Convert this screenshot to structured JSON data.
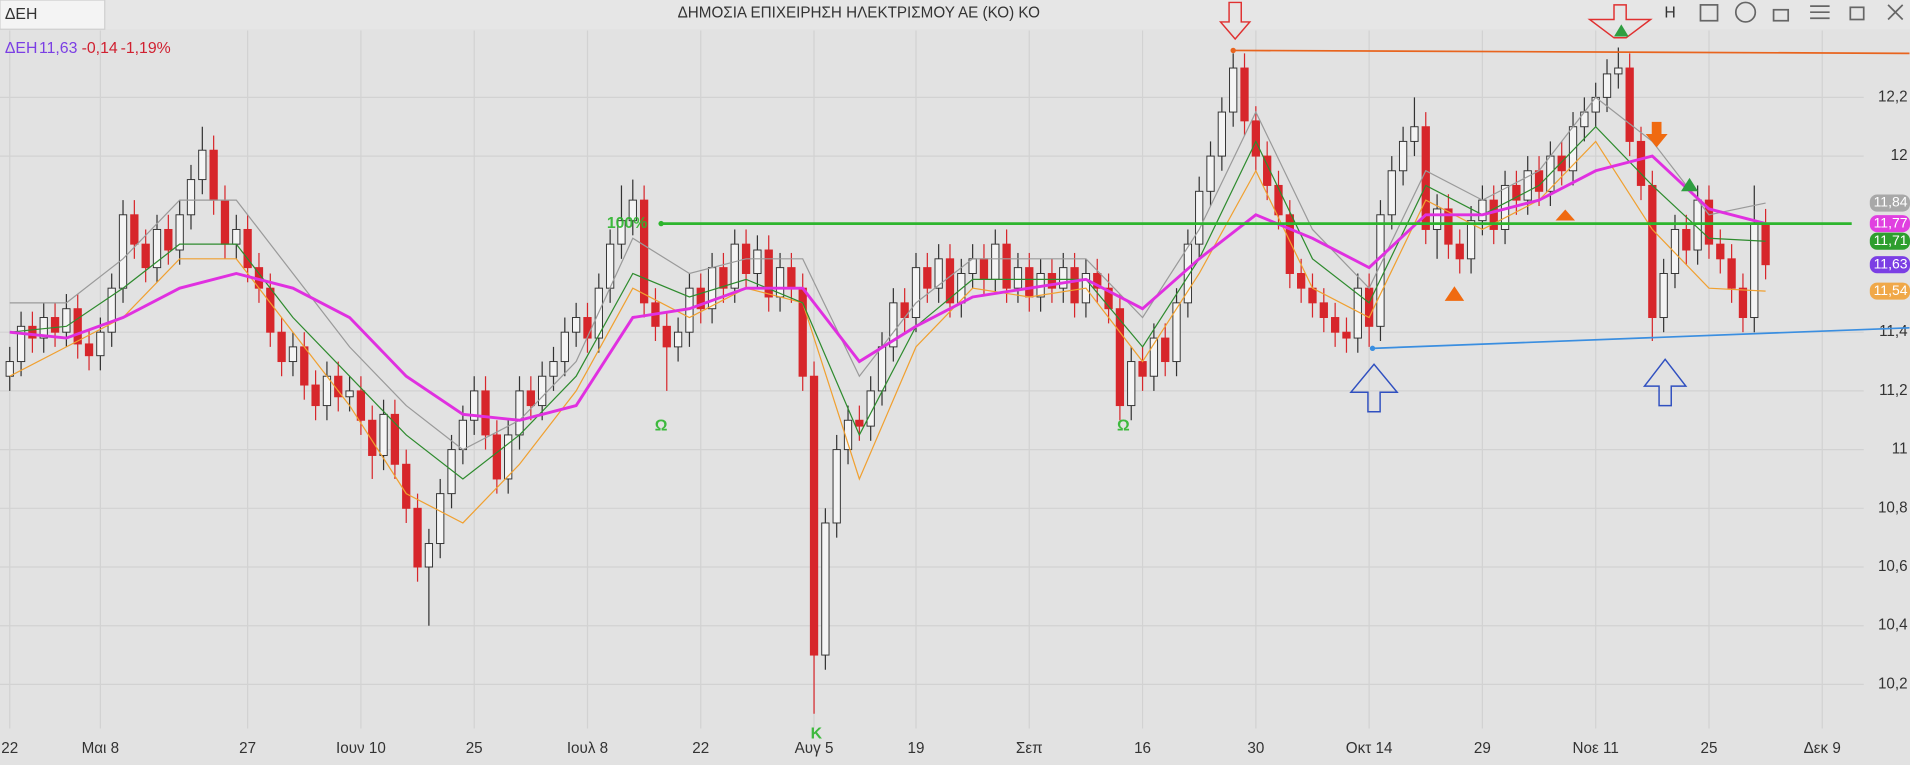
{
  "tab": "ΔΕΗ",
  "title": "ΔΗΜΟΣΙΑ ΕΠΙΧΕΙΡΗΣΗ ΗΛΕΚΤΡΙΣΜΟΥ ΑΕ (ΚΟ) ΚΟ",
  "toolbar": {
    "h_button": "H"
  },
  "chart_data": {
    "type": "candlestick",
    "legend": {
      "symbol": "ΔΕΗ",
      "last": "11,63",
      "change": "-0,14",
      "change_pct": "-1,19%"
    },
    "xlim": [
      -0.86,
      163.66
    ],
    "xticks": [
      {
        "value": 0,
        "label": "22"
      },
      {
        "value": 8,
        "label": "Μαι 8"
      },
      {
        "value": 21,
        "label": "27"
      },
      {
        "value": 31,
        "label": "Ιουν 10"
      },
      {
        "value": 41,
        "label": "25"
      },
      {
        "value": 51,
        "label": "Ιουλ 8"
      },
      {
        "value": 61,
        "label": "22"
      },
      {
        "value": 71,
        "label": "Αυγ 5"
      },
      {
        "value": 80,
        "label": "19"
      },
      {
        "value": 90,
        "label": "Σεπ"
      },
      {
        "value": 100,
        "label": "16"
      },
      {
        "value": 110,
        "label": "30"
      },
      {
        "value": 120,
        "label": "Οκτ 14"
      },
      {
        "value": 130,
        "label": "29"
      },
      {
        "value": 140,
        "label": "Νοε 11"
      },
      {
        "value": 150,
        "label": "25"
      },
      {
        "value": 160,
        "label": "Δεκ 9"
      }
    ],
    "ylim": [
      10.05,
      12.428
    ],
    "yticks": [
      {
        "value": 10.2,
        "label": "10,2"
      },
      {
        "value": 10.4,
        "label": "10,4"
      },
      {
        "value": 10.6,
        "label": "10,6"
      },
      {
        "value": 10.8,
        "label": "10,8"
      },
      11,
      {
        "value": 11.2,
        "label": "11,2"
      },
      {
        "value": 11.4,
        "label": "11,4"
      },
      12,
      {
        "value": 12.2,
        "label": "12,2"
      }
    ],
    "grid": true,
    "up_color": "#f4f4f4",
    "down_color": "#d7262b",
    "candles": {
      "open": [
        11.25,
        11.3,
        11.42,
        11.38,
        11.45,
        11.4,
        11.48,
        11.36,
        11.32,
        11.4,
        11.55,
        11.8,
        11.7,
        11.62,
        11.75,
        11.68,
        11.8,
        11.92,
        12.02,
        11.85,
        11.7,
        11.75,
        11.62,
        11.55,
        11.4,
        11.3,
        11.35,
        11.22,
        11.15,
        11.25,
        11.18,
        11.2,
        11.1,
        10.98,
        11.12,
        10.95,
        10.8,
        10.6,
        10.68,
        10.85,
        11.0,
        11.1,
        11.2,
        11.05,
        10.9,
        11.05,
        11.2,
        11.15,
        11.25,
        11.3,
        11.4,
        11.45,
        11.38,
        11.55,
        11.7,
        11.78,
        11.85,
        11.5,
        11.42,
        11.35,
        11.4,
        11.55,
        11.48,
        11.62,
        11.55,
        11.7,
        11.6,
        11.68,
        11.52,
        11.62,
        11.55,
        11.25,
        10.3,
        10.75,
        11.0,
        11.1,
        11.08,
        11.2,
        11.35,
        11.5,
        11.45,
        11.62,
        11.55,
        11.65,
        11.5,
        11.6,
        11.65,
        11.58,
        11.7,
        11.55,
        11.62,
        11.52,
        11.6,
        11.55,
        11.62,
        11.5,
        11.6,
        11.55,
        11.48,
        11.15,
        11.3,
        11.25,
        11.38,
        11.3,
        11.5,
        11.7,
        11.88,
        12.0,
        12.15,
        12.3,
        12.12,
        12.0,
        11.9,
        11.8,
        11.6,
        11.55,
        11.5,
        11.45,
        11.4,
        11.38,
        11.55,
        11.42,
        11.8,
        11.95,
        12.05,
        12.1,
        11.75,
        11.82,
        11.7,
        11.65,
        11.78,
        11.85,
        11.75,
        11.9,
        11.85,
        11.95,
        11.88,
        12.0,
        11.95,
        12.1,
        12.15,
        12.2,
        12.28,
        12.3,
        12.05,
        11.9,
        11.45,
        11.6,
        11.75,
        11.68,
        11.85,
        11.7,
        11.65,
        11.55,
        11.45,
        11.77
      ],
      "high": [
        11.35,
        11.47,
        11.47,
        11.5,
        11.5,
        11.53,
        11.53,
        11.41,
        11.45,
        11.6,
        11.85,
        11.85,
        11.75,
        11.8,
        11.8,
        11.85,
        11.97,
        12.1,
        12.07,
        11.9,
        11.8,
        11.8,
        11.67,
        11.6,
        11.45,
        11.4,
        11.4,
        11.27,
        11.3,
        11.3,
        11.25,
        11.25,
        11.15,
        11.17,
        11.17,
        11.0,
        10.85,
        10.73,
        10.9,
        11.05,
        11.15,
        11.25,
        11.25,
        11.1,
        11.1,
        11.25,
        11.25,
        11.3,
        11.35,
        11.45,
        11.5,
        11.5,
        11.6,
        11.75,
        11.9,
        11.92,
        11.9,
        11.55,
        11.47,
        11.45,
        11.6,
        11.6,
        11.67,
        11.67,
        11.75,
        11.75,
        11.73,
        11.73,
        11.67,
        11.67,
        11.6,
        11.3,
        10.8,
        11.05,
        11.15,
        11.15,
        11.25,
        11.4,
        11.55,
        11.55,
        11.67,
        11.67,
        11.7,
        11.7,
        11.65,
        11.7,
        11.7,
        11.75,
        11.75,
        11.67,
        11.67,
        11.65,
        11.65,
        11.67,
        11.67,
        11.65,
        11.65,
        11.6,
        11.53,
        11.35,
        11.35,
        11.43,
        11.43,
        11.55,
        11.75,
        11.93,
        12.05,
        12.2,
        12.35,
        12.35,
        12.17,
        12.05,
        11.95,
        11.85,
        11.65,
        11.6,
        11.55,
        11.5,
        11.45,
        11.6,
        11.6,
        11.85,
        12.0,
        12.1,
        12.2,
        12.15,
        11.87,
        11.87,
        11.75,
        11.83,
        11.9,
        11.9,
        11.95,
        11.95,
        12.0,
        12.0,
        12.05,
        12.05,
        12.15,
        12.2,
        12.25,
        12.33,
        12.37,
        12.35,
        12.1,
        11.95,
        11.65,
        11.8,
        11.8,
        11.9,
        11.9,
        11.75,
        11.7,
        11.6,
        11.9,
        11.82
      ],
      "low": [
        11.2,
        11.25,
        11.33,
        11.33,
        11.35,
        11.35,
        11.31,
        11.27,
        11.27,
        11.35,
        11.5,
        11.65,
        11.57,
        11.57,
        11.63,
        11.63,
        11.75,
        11.87,
        11.8,
        11.65,
        11.65,
        11.57,
        11.5,
        11.35,
        11.25,
        11.25,
        11.17,
        11.1,
        11.1,
        11.13,
        11.13,
        11.05,
        10.9,
        10.93,
        10.9,
        10.75,
        10.55,
        10.4,
        10.63,
        10.8,
        10.95,
        11.05,
        11.0,
        10.85,
        10.85,
        11.0,
        11.1,
        11.1,
        11.2,
        11.25,
        11.35,
        11.33,
        11.33,
        11.5,
        11.65,
        11.73,
        11.45,
        11.37,
        11.2,
        11.3,
        11.35,
        11.43,
        11.43,
        11.5,
        11.5,
        11.55,
        11.55,
        11.47,
        11.47,
        11.5,
        11.2,
        10.1,
        10.25,
        10.7,
        10.95,
        11.03,
        11.03,
        11.15,
        11.3,
        11.4,
        11.4,
        11.5,
        11.5,
        11.45,
        11.45,
        11.55,
        11.53,
        11.53,
        11.5,
        11.5,
        11.47,
        11.47,
        11.5,
        11.5,
        11.45,
        11.45,
        11.5,
        11.43,
        11.1,
        11.1,
        11.2,
        11.2,
        11.25,
        11.25,
        11.45,
        11.65,
        11.83,
        11.95,
        12.1,
        12.07,
        11.95,
        11.85,
        11.75,
        11.55,
        11.5,
        11.45,
        11.4,
        11.35,
        11.33,
        11.33,
        11.35,
        11.37,
        11.75,
        11.9,
        12.0,
        11.7,
        11.65,
        11.65,
        11.6,
        11.6,
        11.73,
        11.7,
        11.7,
        11.8,
        11.8,
        11.83,
        11.83,
        11.9,
        11.9,
        12.05,
        12.1,
        12.15,
        12.23,
        12.0,
        11.85,
        11.37,
        11.4,
        11.55,
        11.63,
        11.63,
        11.65,
        11.6,
        11.5,
        11.4,
        11.4,
        11.58
      ],
      "close": [
        11.3,
        11.42,
        11.38,
        11.45,
        11.4,
        11.48,
        11.36,
        11.32,
        11.4,
        11.55,
        11.8,
        11.7,
        11.62,
        11.75,
        11.68,
        11.8,
        11.92,
        12.02,
        11.85,
        11.7,
        11.75,
        11.62,
        11.55,
        11.4,
        11.3,
        11.35,
        11.22,
        11.15,
        11.25,
        11.18,
        11.2,
        11.1,
        10.98,
        11.12,
        10.95,
        10.8,
        10.6,
        10.68,
        10.85,
        11.0,
        11.1,
        11.2,
        11.05,
        10.9,
        11.05,
        11.2,
        11.15,
        11.25,
        11.3,
        11.4,
        11.45,
        11.38,
        11.55,
        11.7,
        11.78,
        11.85,
        11.5,
        11.42,
        11.35,
        11.4,
        11.55,
        11.48,
        11.62,
        11.55,
        11.7,
        11.6,
        11.68,
        11.52,
        11.62,
        11.55,
        11.25,
        10.3,
        10.75,
        11.0,
        11.1,
        11.08,
        11.2,
        11.35,
        11.5,
        11.45,
        11.62,
        11.55,
        11.65,
        11.5,
        11.6,
        11.65,
        11.58,
        11.7,
        11.55,
        11.62,
        11.52,
        11.6,
        11.55,
        11.62,
        11.5,
        11.6,
        11.55,
        11.48,
        11.15,
        11.3,
        11.25,
        11.38,
        11.3,
        11.5,
        11.7,
        11.88,
        12.0,
        12.15,
        12.3,
        12.12,
        12.0,
        11.9,
        11.8,
        11.6,
        11.55,
        11.5,
        11.45,
        11.4,
        11.38,
        11.55,
        11.42,
        11.8,
        11.95,
        12.05,
        12.1,
        11.75,
        11.82,
        11.7,
        11.65,
        11.78,
        11.85,
        11.75,
        11.9,
        11.85,
        11.95,
        11.88,
        12.0,
        11.95,
        12.1,
        12.15,
        12.2,
        12.28,
        12.3,
        12.05,
        11.9,
        11.45,
        11.6,
        11.75,
        11.68,
        11.85,
        11.7,
        11.65,
        11.55,
        11.45,
        11.77,
        11.63
      ]
    },
    "series": [
      {
        "color": "#9a9a9a",
        "x": [
          0,
          5,
          10,
          15,
          20,
          25,
          30,
          35,
          40,
          45,
          50,
          55,
          60,
          65,
          70,
          75,
          80,
          85,
          90,
          95,
          100,
          105,
          110,
          115,
          120,
          125,
          130,
          135,
          140,
          145,
          150,
          155
        ],
        "values": [
          11.5,
          11.5,
          11.65,
          11.85,
          11.85,
          11.6,
          11.35,
          11.15,
          11.0,
          11.1,
          11.3,
          11.72,
          11.6,
          11.65,
          11.65,
          11.25,
          11.5,
          11.65,
          11.65,
          11.65,
          11.45,
          11.75,
          12.15,
          11.75,
          11.55,
          11.95,
          11.85,
          11.95,
          12.2,
          12.05,
          11.8,
          11.84
        ]
      },
      {
        "color": "#f0a030",
        "x": [
          0,
          5,
          10,
          15,
          20,
          25,
          30,
          35,
          40,
          45,
          50,
          55,
          60,
          65,
          70,
          75,
          80,
          85,
          90,
          95,
          100,
          105,
          110,
          115,
          120,
          125,
          130,
          135,
          140,
          145,
          150,
          155
        ],
        "values": [
          11.25,
          11.35,
          11.45,
          11.65,
          11.65,
          11.4,
          11.15,
          10.85,
          10.75,
          10.95,
          11.2,
          11.55,
          11.45,
          11.55,
          11.5,
          10.9,
          11.35,
          11.55,
          11.52,
          11.55,
          11.3,
          11.6,
          11.95,
          11.55,
          11.45,
          11.85,
          11.75,
          11.85,
          12.05,
          11.75,
          11.55,
          11.54
        ]
      },
      {
        "color": "#2e8b2e",
        "x": [
          0,
          5,
          10,
          15,
          20,
          25,
          30,
          35,
          40,
          45,
          50,
          55,
          60,
          65,
          70,
          75,
          80,
          85,
          90,
          95,
          100,
          105,
          110,
          115,
          120,
          125,
          130,
          135,
          140,
          145,
          150,
          155
        ],
        "values": [
          11.4,
          11.42,
          11.55,
          11.7,
          11.7,
          11.45,
          11.25,
          11.05,
          10.9,
          11.05,
          11.25,
          11.6,
          11.52,
          11.58,
          11.5,
          11.05,
          11.42,
          11.58,
          11.58,
          11.58,
          11.35,
          11.65,
          12.05,
          11.65,
          11.5,
          11.9,
          11.8,
          11.9,
          12.1,
          11.9,
          11.72,
          11.71
        ]
      },
      {
        "color": "#e030e0",
        "x": [
          0,
          5,
          10,
          15,
          20,
          25,
          30,
          35,
          40,
          45,
          50,
          55,
          60,
          65,
          70,
          75,
          80,
          85,
          90,
          95,
          100,
          105,
          110,
          115,
          120,
          125,
          130,
          135,
          140,
          145,
          150,
          155
        ],
        "values": [
          11.4,
          11.38,
          11.45,
          11.55,
          11.6,
          11.55,
          11.45,
          11.25,
          11.12,
          11.1,
          11.15,
          11.45,
          11.48,
          11.55,
          11.55,
          11.3,
          11.42,
          11.52,
          11.55,
          11.58,
          11.48,
          11.65,
          11.8,
          11.72,
          11.62,
          11.8,
          11.8,
          11.85,
          11.95,
          12.0,
          11.82,
          11.77
        ]
      }
    ],
    "price_labels": [
      {
        "value": 11.84,
        "label": "11,84",
        "color": "#a8a8a8"
      },
      {
        "value": 11.77,
        "label": "11,77",
        "color": "#e040e0"
      },
      {
        "value": 11.71,
        "label": "11,71",
        "color": "#2e9e2e"
      },
      {
        "value": 11.63,
        "label": "11,63",
        "color": "#7b3fe4"
      },
      {
        "value": 11.54,
        "label": "11,54",
        "color": "#f0a848"
      }
    ],
    "lines": [
      {
        "color": "#2db52d",
        "x": [
          57.5,
          162.6
        ],
        "y": [
          11.77,
          11.77
        ]
      },
      {
        "color": "#e8641e",
        "x": [
          108,
          167.7
        ],
        "y": [
          12.36,
          12.35
        ]
      },
      {
        "color": "#3a8ee0",
        "x": [
          120.3,
          167.7
        ],
        "y": [
          11.345,
          11.415
        ]
      }
    ],
    "annotations": [
      {
        "text": "100%",
        "x": 54.5,
        "y": 11.77,
        "color": "#2db52d"
      },
      {
        "text": "Ω",
        "x": 57.5,
        "y": 11.08,
        "color": "#2db52d"
      },
      {
        "text": "Ω",
        "x": 98.3,
        "y": 11.08,
        "color": "#2db52d"
      },
      {
        "text": "K",
        "x": 71.2,
        "y": 10.03,
        "color": "#2db52d"
      }
    ]
  }
}
